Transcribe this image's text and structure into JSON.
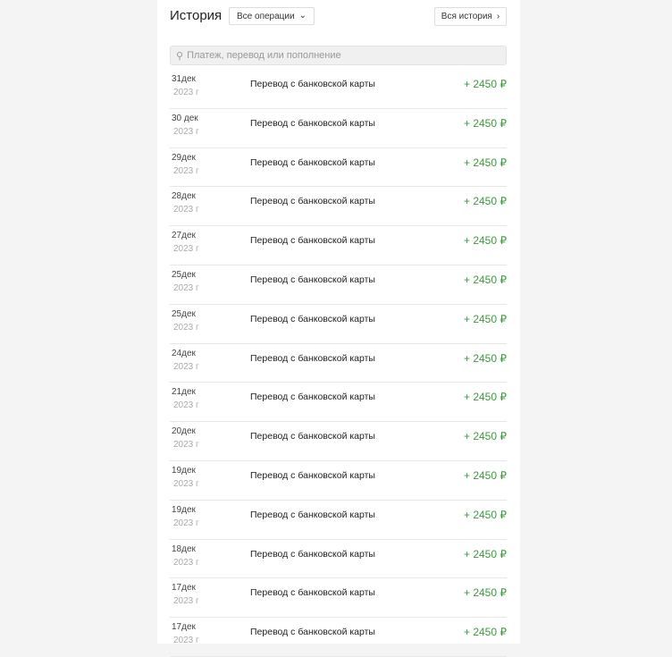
{
  "header": {
    "title": "История",
    "filter": "Все операции",
    "all_history": "Вся история"
  },
  "search": {
    "placeholder": "Платеж, перевод или пополнение",
    "value": ""
  },
  "colors": {
    "amount": "#3a9a3a"
  },
  "transactions": [
    {
      "day": "31дек",
      "year": "2023 г",
      "description": "Перевод с банковской карты",
      "amount": "+ 2450 ₽"
    },
    {
      "day": "30 дек",
      "year": "2023 г",
      "description": "Перевод с банковской карты",
      "amount": "+ 2450 ₽"
    },
    {
      "day": "29дек",
      "year": "2023 г",
      "description": "Перевод с банковской карты",
      "amount": "+ 2450 ₽"
    },
    {
      "day": "28дек",
      "year": "2023 г",
      "description": "Перевод с банковской карты",
      "amount": "+ 2450 ₽"
    },
    {
      "day": "27дек",
      "year": "2023 г",
      "description": "Перевод с банковской карты",
      "amount": "+ 2450 ₽"
    },
    {
      "day": "25дек",
      "year": "2023 г",
      "description": "Перевод с банковской карты",
      "amount": "+ 2450 ₽"
    },
    {
      "day": "25дек",
      "year": "2023 г",
      "description": "Перевод с банковской карты",
      "amount": "+ 2450 ₽"
    },
    {
      "day": "24дек",
      "year": "2023 г",
      "description": "Перевод с банковской карты",
      "amount": "+ 2450 ₽"
    },
    {
      "day": "21дек",
      "year": "2023 г",
      "description": "Перевод с банковской карты",
      "amount": "+ 2450 ₽"
    },
    {
      "day": "20дек",
      "year": "2023 г",
      "description": "Перевод с банковской карты",
      "amount": "+ 2450 ₽"
    },
    {
      "day": "19дек",
      "year": "2023 г",
      "description": "Перевод с банковской карты",
      "amount": "+ 2450 ₽"
    },
    {
      "day": "19дек",
      "year": "2023 г",
      "description": "Перевод с банковской карты",
      "amount": "+ 2450 ₽"
    },
    {
      "day": "18дек",
      "year": "2023 г",
      "description": "Перевод с банковской карты",
      "amount": "+ 2450 ₽"
    },
    {
      "day": "17дек",
      "year": "2023 г",
      "description": "Перевод с банковской карты",
      "amount": "+ 2450 ₽"
    },
    {
      "day": "17дек",
      "year": "2023 г",
      "description": "Перевод с банковской карты",
      "amount": "+ 2450 ₽"
    }
  ]
}
